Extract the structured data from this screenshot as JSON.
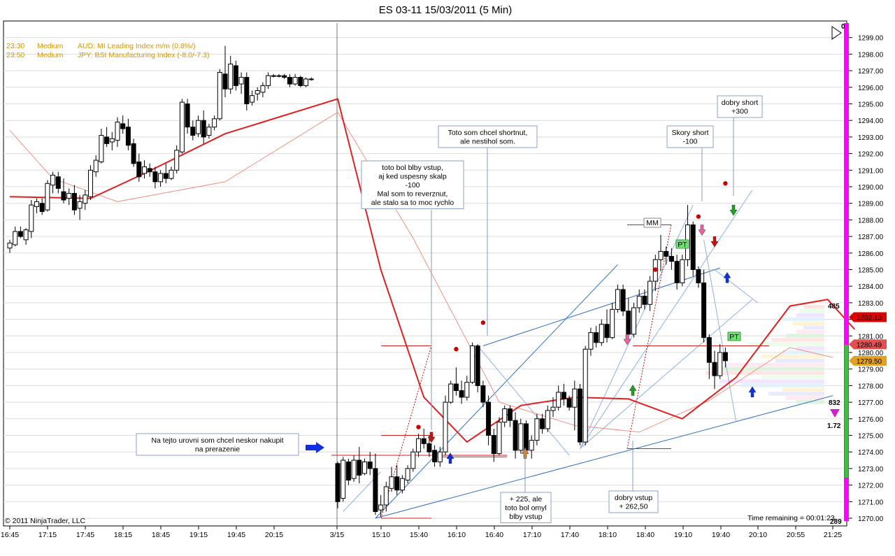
{
  "title": "ES 03-11  15/03/2011 (5 Min)",
  "copyright": "© 2011 NinjaTrader, LLC",
  "time_remaining": "Time remaining = 00:01:23",
  "news": [
    {
      "time": "23:30",
      "impact": "Medium",
      "text": "AUD: MI Leading Index m/m (0.8%/)"
    },
    {
      "time": "23:50",
      "impact": "Medium",
      "text": "JPY: BSI Manufacturing Index (-8.0/-7.3)"
    }
  ],
  "price_labels": [
    {
      "text": "1282.13",
      "value": 1282.13,
      "color": "#e00000"
    },
    {
      "text": "1280.49",
      "value": 1280.49,
      "color": "#e05050"
    },
    {
      "text": "1279.50",
      "value": 1279.5,
      "color": "#e0a020"
    }
  ],
  "side_values": {
    "top": "485",
    "mid": "832",
    "ratio": "1.72",
    "bottom": "289",
    "corner": "0"
  },
  "annotations": {
    "nakupit": [
      "Na tejto urovni som chcel neskor nakupit",
      "na prerazenie"
    ],
    "blby_vstup": [
      "toto bol blby vstup,",
      "aj ked uspesny skalp",
      "-100",
      "Mal som to reverznut,",
      "ale stalo sa to moc rychlo"
    ],
    "shortnut": [
      "Toto som chcel shortnut,",
      "ale nestihol som."
    ],
    "plus225": [
      "+ 225, ale",
      "toto bol omyl",
      "blby vstup"
    ],
    "dobry_vstup": [
      "dobry vstup",
      "+ 262,50"
    ],
    "skory_short": [
      "Skory short",
      "-100"
    ],
    "dobry_short": [
      "dobry short",
      "+300"
    ],
    "mm": "MM",
    "pt": "PT"
  },
  "chart_data": {
    "type": "candlestick",
    "symbol": "ES 03-11",
    "interval": "5 Min",
    "date": "15/03/2011",
    "ylim": [
      1269.5,
      1299.5
    ],
    "y_ticks": [
      1270,
      1271,
      1272,
      1273,
      1274,
      1275,
      1276,
      1277,
      1278,
      1279,
      1280,
      1281,
      1282,
      1283,
      1284,
      1285,
      1286,
      1287,
      1288,
      1289,
      1290,
      1291,
      1292,
      1293,
      1294,
      1295,
      1296,
      1297,
      1298,
      1299
    ],
    "y_tick_labels": [
      "1270.00",
      "1271.00",
      "1272.00",
      "1273.00",
      "1274.00",
      "1275.00",
      "1276.00",
      "1277.00",
      "1278.00",
      "1279.00",
      "1280.00",
      "1281.00",
      "1282.00",
      "1283.00",
      "1284.00",
      "1285.00",
      "1286.00",
      "1287.00",
      "1288.00",
      "1289.00",
      "1290.00",
      "1291.00",
      "1292.00",
      "1293.00",
      "1294.00",
      "1295.00",
      "1296.00",
      "1297.00",
      "1298.00",
      "1299.00"
    ],
    "x_tick_labels": [
      "16:45",
      "17:15",
      "17:45",
      "18:15",
      "18:45",
      "19:15",
      "19:45",
      "20:15",
      "3/15",
      "15:10",
      "15:40",
      "16:10",
      "16:40",
      "17:10",
      "17:40",
      "18:10",
      "18:40",
      "19:10",
      "19:40",
      "20:10",
      "20:55",
      "21:25"
    ],
    "candles_day1": [
      [
        1286.3,
        1286.8,
        1286.0,
        1286.6
      ],
      [
        1286.5,
        1287.6,
        1286.4,
        1287.3
      ],
      [
        1287.3,
        1287.6,
        1286.9,
        1287.0
      ],
      [
        1286.8,
        1287.5,
        1286.5,
        1287.4
      ],
      [
        1287.3,
        1289.2,
        1286.9,
        1288.9
      ],
      [
        1288.8,
        1289.3,
        1288.4,
        1289.1
      ],
      [
        1289.0,
        1289.3,
        1288.3,
        1288.5
      ],
      [
        1288.6,
        1290.4,
        1288.5,
        1290.2
      ],
      [
        1290.1,
        1290.9,
        1289.6,
        1290.7
      ],
      [
        1290.6,
        1290.9,
        1289.6,
        1289.9
      ],
      [
        1289.7,
        1290.5,
        1289.0,
        1289.2
      ],
      [
        1289.3,
        1289.9,
        1288.9,
        1289.6
      ],
      [
        1289.6,
        1290.1,
        1288.3,
        1288.6
      ],
      [
        1288.7,
        1289.5,
        1288.0,
        1289.1
      ],
      [
        1289.0,
        1289.8,
        1288.6,
        1289.5
      ],
      [
        1289.4,
        1291.3,
        1289.2,
        1291.0
      ],
      [
        1290.9,
        1291.9,
        1290.6,
        1291.6
      ],
      [
        1291.5,
        1293.5,
        1291.4,
        1293.1
      ],
      [
        1293.0,
        1293.6,
        1292.4,
        1292.6
      ],
      [
        1292.7,
        1293.3,
        1292.2,
        1292.9
      ],
      [
        1292.8,
        1294.2,
        1292.4,
        1293.9
      ],
      [
        1293.8,
        1294.3,
        1293.2,
        1293.5
      ],
      [
        1293.6,
        1294.1,
        1292.2,
        1292.5
      ],
      [
        1292.6,
        1292.9,
        1291.2,
        1291.4
      ],
      [
        1291.5,
        1292.0,
        1290.3,
        1290.6
      ],
      [
        1290.8,
        1291.6,
        1290.5,
        1291.2
      ],
      [
        1291.1,
        1291.4,
        1290.6,
        1290.9
      ],
      [
        1290.9,
        1291.2,
        1289.9,
        1290.3
      ],
      [
        1290.3,
        1291.0,
        1290.0,
        1290.8
      ],
      [
        1290.8,
        1291.4,
        1290.2,
        1290.5
      ],
      [
        1290.5,
        1291.2,
        1290.4,
        1291.0
      ],
      [
        1291.0,
        1292.5,
        1290.8,
        1292.2
      ],
      [
        1292.1,
        1295.3,
        1292.0,
        1295.1
      ],
      [
        1295.0,
        1295.3,
        1293.2,
        1293.6
      ],
      [
        1293.6,
        1294.0,
        1292.8,
        1293.1
      ],
      [
        1293.2,
        1294.3,
        1293.0,
        1294.0
      ],
      [
        1294.0,
        1294.6,
        1292.6,
        1293.0
      ],
      [
        1293.1,
        1293.8,
        1292.9,
        1293.6
      ],
      [
        1293.6,
        1294.3,
        1293.4,
        1294.1
      ],
      [
        1294.1,
        1297.1,
        1294.0,
        1296.9
      ],
      [
        1296.8,
        1298.5,
        1295.4,
        1295.9
      ],
      [
        1295.9,
        1297.9,
        1295.6,
        1297.4
      ],
      [
        1297.3,
        1297.6,
        1295.8,
        1296.1
      ],
      [
        1296.2,
        1296.9,
        1295.6,
        1296.6
      ],
      [
        1296.6,
        1296.9,
        1294.6,
        1295.0
      ],
      [
        1295.1,
        1295.8,
        1294.9,
        1295.5
      ],
      [
        1295.6,
        1296.0,
        1295.2,
        1295.8
      ],
      [
        1295.7,
        1296.3,
        1295.4,
        1296.1
      ],
      [
        1296.1,
        1296.9,
        1295.9,
        1296.7
      ],
      [
        1296.7,
        1296.8,
        1296.6,
        1296.7
      ],
      [
        1296.7,
        1296.8,
        1296.6,
        1296.7
      ],
      [
        1296.7,
        1296.8,
        1296.5,
        1296.6
      ],
      [
        1296.6,
        1296.8,
        1296.0,
        1296.2
      ],
      [
        1296.2,
        1296.8,
        1296.1,
        1296.6
      ],
      [
        1296.6,
        1296.7,
        1296.0,
        1296.1
      ],
      [
        1296.1,
        1296.6,
        1296.0,
        1296.5
      ],
      [
        1296.5,
        1296.6,
        1296.4,
        1296.5
      ]
    ],
    "candles_day2": [
      [
        1273.3,
        1273.4,
        1270.6,
        1271.0
      ],
      [
        1271.2,
        1273.7,
        1271.0,
        1273.5
      ],
      [
        1273.4,
        1273.6,
        1272.0,
        1272.3
      ],
      [
        1272.4,
        1273.8,
        1272.2,
        1273.5
      ],
      [
        1273.5,
        1274.3,
        1272.1,
        1272.6
      ],
      [
        1272.7,
        1273.6,
        1272.6,
        1273.4
      ],
      [
        1273.4,
        1274.0,
        1272.6,
        1273.0
      ],
      [
        1273.0,
        1273.9,
        1270.2,
        1270.4
      ],
      [
        1270.5,
        1271.4,
        1270.1,
        1270.8
      ],
      [
        1270.8,
        1272.2,
        1270.4,
        1271.9
      ],
      [
        1271.8,
        1273.1,
        1271.6,
        1272.5
      ],
      [
        1272.5,
        1273.2,
        1271.4,
        1271.7
      ],
      [
        1271.7,
        1272.6,
        1271.5,
        1272.4
      ],
      [
        1272.3,
        1273.2,
        1272.1,
        1273.0
      ],
      [
        1273.0,
        1274.2,
        1272.8,
        1274.0
      ],
      [
        1274.0,
        1275.1,
        1273.7,
        1274.8
      ],
      [
        1274.8,
        1275.4,
        1274.2,
        1274.5
      ],
      [
        1274.5,
        1275.0,
        1273.7,
        1274.0
      ],
      [
        1274.1,
        1274.4,
        1273.1,
        1273.4
      ],
      [
        1273.4,
        1274.3,
        1273.1,
        1274.0
      ],
      [
        1274.0,
        1277.4,
        1273.8,
        1277.0
      ],
      [
        1277.0,
        1278.3,
        1276.9,
        1278.1
      ],
      [
        1278.1,
        1279.1,
        1277.4,
        1277.7
      ],
      [
        1277.7,
        1278.3,
        1276.9,
        1277.3
      ],
      [
        1277.3,
        1278.6,
        1277.1,
        1278.2
      ],
      [
        1278.2,
        1280.6,
        1278.1,
        1280.4
      ],
      [
        1280.4,
        1280.5,
        1277.6,
        1278.0
      ],
      [
        1278.0,
        1278.3,
        1276.7,
        1277.0
      ],
      [
        1277.0,
        1277.4,
        1274.4,
        1275.0
      ],
      [
        1275.0,
        1275.4,
        1273.4,
        1273.9
      ],
      [
        1273.9,
        1276.1,
        1273.8,
        1275.8
      ],
      [
        1275.8,
        1276.8,
        1275.5,
        1276.6
      ],
      [
        1276.6,
        1276.8,
        1275.5,
        1275.9
      ],
      [
        1275.9,
        1276.4,
        1273.6,
        1274.1
      ],
      [
        1274.1,
        1276.0,
        1273.9,
        1275.7
      ],
      [
        1275.7,
        1275.9,
        1273.9,
        1274.1
      ],
      [
        1274.1,
        1275.0,
        1273.6,
        1274.7
      ],
      [
        1274.7,
        1276.3,
        1274.4,
        1276.0
      ],
      [
        1276.0,
        1276.3,
        1275.1,
        1275.4
      ],
      [
        1275.4,
        1276.8,
        1275.2,
        1276.5
      ],
      [
        1276.5,
        1277.3,
        1276.1,
        1276.7
      ],
      [
        1276.7,
        1278.0,
        1276.5,
        1277.6
      ],
      [
        1277.6,
        1278.1,
        1276.8,
        1277.2
      ],
      [
        1277.2,
        1277.4,
        1276.5,
        1276.7
      ],
      [
        1276.7,
        1278.3,
        1275.3,
        1277.8
      ],
      [
        1277.8,
        1278.1,
        1274.4,
        1274.6
      ],
      [
        1274.6,
        1280.4,
        1274.4,
        1280.2
      ],
      [
        1280.2,
        1281.5,
        1279.8,
        1281.2
      ],
      [
        1281.2,
        1281.6,
        1280.3,
        1280.6
      ],
      [
        1280.6,
        1282.0,
        1280.4,
        1281.7
      ],
      [
        1281.7,
        1282.6,
        1280.6,
        1280.9
      ],
      [
        1280.9,
        1283.0,
        1280.8,
        1282.6
      ],
      [
        1282.6,
        1284.1,
        1282.4,
        1283.8
      ],
      [
        1283.8,
        1284.1,
        1282.2,
        1282.5
      ],
      [
        1282.5,
        1283.3,
        1280.8,
        1281.1
      ],
      [
        1281.1,
        1283.0,
        1280.9,
        1282.7
      ],
      [
        1282.7,
        1283.8,
        1282.4,
        1283.4
      ],
      [
        1283.4,
        1283.8,
        1282.6,
        1282.9
      ],
      [
        1282.9,
        1284.6,
        1282.5,
        1284.3
      ],
      [
        1284.3,
        1285.9,
        1283.7,
        1285.6
      ],
      [
        1285.6,
        1287.1,
        1284.9,
        1286.1
      ],
      [
        1286.1,
        1286.4,
        1285.3,
        1285.8
      ],
      [
        1285.8,
        1286.3,
        1285.0,
        1285.5
      ],
      [
        1285.5,
        1285.9,
        1283.8,
        1284.2
      ],
      [
        1284.2,
        1285.9,
        1284.0,
        1285.6
      ],
      [
        1285.6,
        1288.9,
        1285.2,
        1287.7
      ],
      [
        1287.7,
        1287.9,
        1284.6,
        1285.0
      ],
      [
        1285.0,
        1285.2,
        1283.9,
        1284.2
      ],
      [
        1284.2,
        1285.0,
        1280.6,
        1280.9
      ],
      [
        1280.9,
        1281.1,
        1278.4,
        1279.4
      ],
      [
        1279.4,
        1280.1,
        1277.8,
        1278.6
      ],
      [
        1278.6,
        1280.5,
        1278.4,
        1280.0
      ],
      [
        1280.0,
        1280.3,
        1279.1,
        1279.5
      ]
    ],
    "ema_fast": [
      [
        0,
        1289.4
      ],
      [
        15,
        1289.3
      ],
      [
        25,
        1290.8
      ],
      [
        40,
        1293.2
      ],
      [
        56,
        1295.3
      ],
      [
        64,
        1285.0
      ],
      [
        72,
        1277.3
      ],
      [
        80,
        1274.6
      ],
      [
        90,
        1276.8
      ],
      [
        100,
        1277.3
      ],
      [
        110,
        1277.2
      ],
      [
        120,
        1276.0
      ],
      [
        130,
        1278.5
      ],
      [
        140,
        1282.8
      ],
      [
        147,
        1283.2
      ],
      [
        152,
        1281.4
      ]
    ],
    "ema_slow": [
      [
        0,
        1293.4
      ],
      [
        8,
        1290.5
      ],
      [
        20,
        1289.1
      ],
      [
        40,
        1290.3
      ],
      [
        56,
        1294.5
      ],
      [
        70,
        1286.9
      ],
      [
        86,
        1277.0
      ],
      [
        100,
        1275.6
      ],
      [
        112,
        1275.2
      ],
      [
        125,
        1277.1
      ],
      [
        140,
        1280.3
      ],
      [
        148,
        1279.7
      ]
    ]
  }
}
